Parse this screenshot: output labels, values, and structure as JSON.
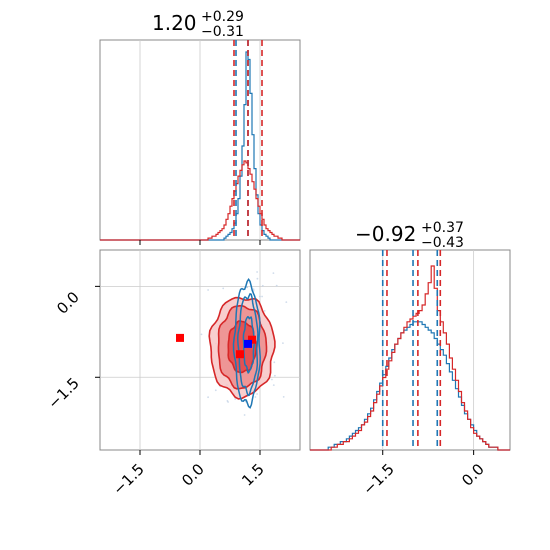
{
  "chart_data": [
    {
      "type": "histogram",
      "panel": "top-left",
      "title": {
        "value": "1.20",
        "plus": "+0.29",
        "minus": "−0.31"
      },
      "xlim": [
        -2.5,
        2.5
      ],
      "grid": true,
      "x_ticks": [
        -1.5,
        0.0,
        1.5
      ],
      "series": [
        {
          "color": "#1f77b4",
          "bin_start": 0.55,
          "bin_width": 0.05,
          "counts": [
            0,
            1,
            2,
            3,
            4,
            6,
            9,
            14,
            22,
            34,
            50,
            72,
            100,
            96,
            78,
            56,
            38,
            24,
            14,
            8,
            5,
            3,
            2,
            1,
            0,
            0,
            0
          ],
          "quantiles": [
            0.9,
            1.2
          ]
        },
        {
          "color": "#d62728",
          "bin_start": 0.2,
          "bin_width": 0.05,
          "counts": [
            1,
            1,
            2,
            2,
            3,
            4,
            5,
            6,
            8,
            11,
            14,
            18,
            22,
            26,
            30,
            34,
            37,
            40,
            42,
            41,
            38,
            35,
            31,
            27,
            22,
            18,
            14,
            11,
            8,
            6,
            5,
            4,
            3,
            2,
            2,
            1,
            1
          ],
          "quantiles": [
            0.85,
            1.2,
            1.55
          ]
        }
      ]
    },
    {
      "type": "contour",
      "panel": "bottom-left",
      "xlim": [
        -2.5,
        2.5
      ],
      "ylim": [
        -2.7,
        0.6
      ],
      "grid": true,
      "x_ticks": [
        -1.5,
        0.0,
        1.5
      ],
      "x_tick_labels": [
        "−1.5",
        "0.0",
        "1.5"
      ],
      "y_ticks": [
        0.0,
        -1.5
      ],
      "y_tick_labels": [
        "0.0",
        "−1.5"
      ],
      "blue_contours": [
        {
          "cx": 1.22,
          "cy": -0.95,
          "rx": 0.13,
          "ry": 0.45
        },
        {
          "cx": 1.2,
          "cy": -0.95,
          "rx": 0.24,
          "ry": 0.8
        },
        {
          "cx": 1.18,
          "cy": -0.95,
          "rx": 0.32,
          "ry": 1.0
        }
      ],
      "red_contours": [
        {
          "cx": 1.05,
          "cy": -1.0,
          "rx": 0.35,
          "ry": 0.42
        },
        {
          "cx": 1.05,
          "cy": -1.0,
          "rx": 0.6,
          "ry": 0.68
        },
        {
          "cx": 1.05,
          "cy": -1.0,
          "rx": 0.8,
          "ry": 0.82
        }
      ],
      "markers": [
        {
          "x": -0.5,
          "y": -0.85,
          "color": "#ff0000"
        },
        {
          "x": 1.3,
          "y": -0.88,
          "color": "#ff0000"
        },
        {
          "x": 1.0,
          "y": -1.12,
          "color": "#ff0000"
        },
        {
          "x": 1.2,
          "y": -0.95,
          "color": "#0000ff"
        }
      ]
    },
    {
      "type": "histogram",
      "panel": "bottom-right",
      "title": {
        "value": "−0.92",
        "plus": "+0.37",
        "minus": "−0.43"
      },
      "xlim": [
        -2.7,
        0.6
      ],
      "grid": true,
      "x_ticks": [
        -1.5,
        0.0
      ],
      "x_tick_labels": [
        "−1.5",
        "0.0"
      ],
      "series": [
        {
          "color": "#1f77b4",
          "bin_start": -2.4,
          "bin_width": 0.05,
          "counts": [
            1,
            1,
            2,
            2,
            3,
            3,
            4,
            5,
            6,
            7,
            8,
            9,
            11,
            13,
            15,
            18,
            21,
            24,
            27,
            30,
            33,
            36,
            38,
            40,
            42,
            43,
            44,
            45,
            46,
            46,
            46,
            45,
            44,
            43,
            42,
            40,
            38,
            36,
            34,
            31,
            28,
            25,
            22,
            19,
            16,
            13,
            11,
            9,
            7,
            5,
            4,
            3,
            2,
            1,
            1,
            1
          ],
          "quantiles": [
            -1.5,
            -1.0,
            -0.6
          ]
        },
        {
          "color": "#d62728",
          "bin_start": -2.4,
          "bin_width": 0.05,
          "counts": [
            0,
            1,
            1,
            2,
            2,
            3,
            3,
            4,
            5,
            6,
            7,
            9,
            10,
            12,
            14,
            17,
            20,
            23,
            26,
            29,
            32,
            35,
            38,
            40,
            42,
            44,
            46,
            47,
            48,
            49,
            50,
            52,
            56,
            60,
            66,
            58,
            50,
            46,
            42,
            38,
            33,
            29,
            25,
            21,
            17,
            14,
            11,
            8,
            6,
            5,
            4,
            3,
            2,
            1,
            1,
            1
          ],
          "quantiles": [
            -1.43,
            -0.92,
            -0.55
          ]
        }
      ]
    }
  ]
}
